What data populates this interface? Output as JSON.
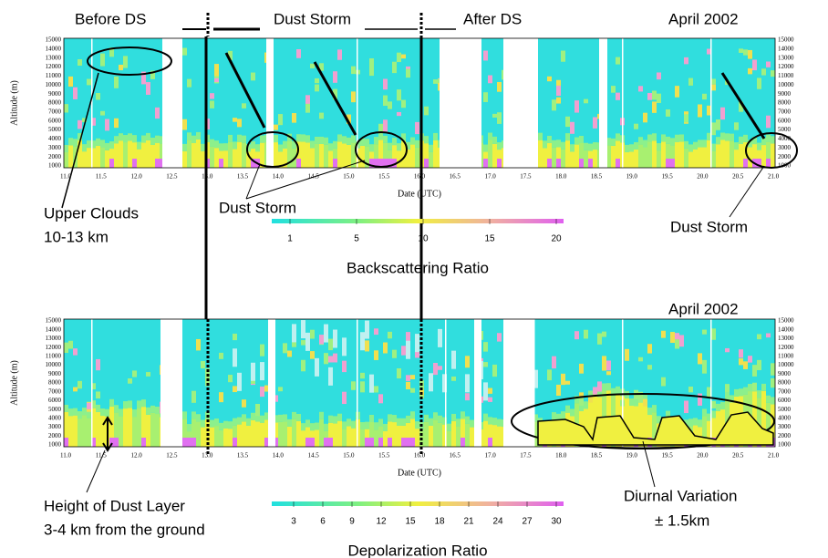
{
  "annotations": {
    "before_ds": "Before DS",
    "dust_storm_top": "Dust Storm",
    "after_ds": "After DS",
    "upper_clouds": [
      "Upper Clouds",
      "10-13 km"
    ],
    "dust_storm_left": "Dust Storm",
    "dust_storm_right": "Dust Storm",
    "dust_layer": [
      "Height of Dust Layer",
      "3-4 km from the ground"
    ],
    "diurnal": [
      "Diurnal Variation",
      "± 1.5km"
    ]
  },
  "panels": [
    {
      "month": "April 2002",
      "y_label": "Altitude (m)",
      "x_label": "Date (UTC)",
      "colorbar": {
        "title": "Backscattering Ratio",
        "ticks": [
          "1",
          "5",
          "10",
          "15",
          "20"
        ]
      }
    },
    {
      "month": "April 2002",
      "y_label": "Altitude (m)",
      "x_label": "Date (UTC)",
      "colorbar": {
        "title": "Depolarization Ratio",
        "ticks": [
          "3",
          "6",
          "9",
          "12",
          "15",
          "18",
          "21",
          "24",
          "27",
          "30"
        ]
      }
    }
  ],
  "x_ticks": [
    "11.0",
    "11.5",
    "12.0",
    "12.5",
    "13.0",
    "13.5",
    "14.0",
    "14.5",
    "15.0",
    "15.5",
    "16.0",
    "16.5",
    "17.0",
    "17.5",
    "18.0",
    "18.5",
    "19.0",
    "19.5",
    "20.0",
    "20.5",
    "21.0"
  ],
  "y_ticks": [
    "1000",
    "2000",
    "3000",
    "4000",
    "5000",
    "6000",
    "7000",
    "8000",
    "9000",
    "10000",
    "11000",
    "12000",
    "13000",
    "14000",
    "15000"
  ]
}
